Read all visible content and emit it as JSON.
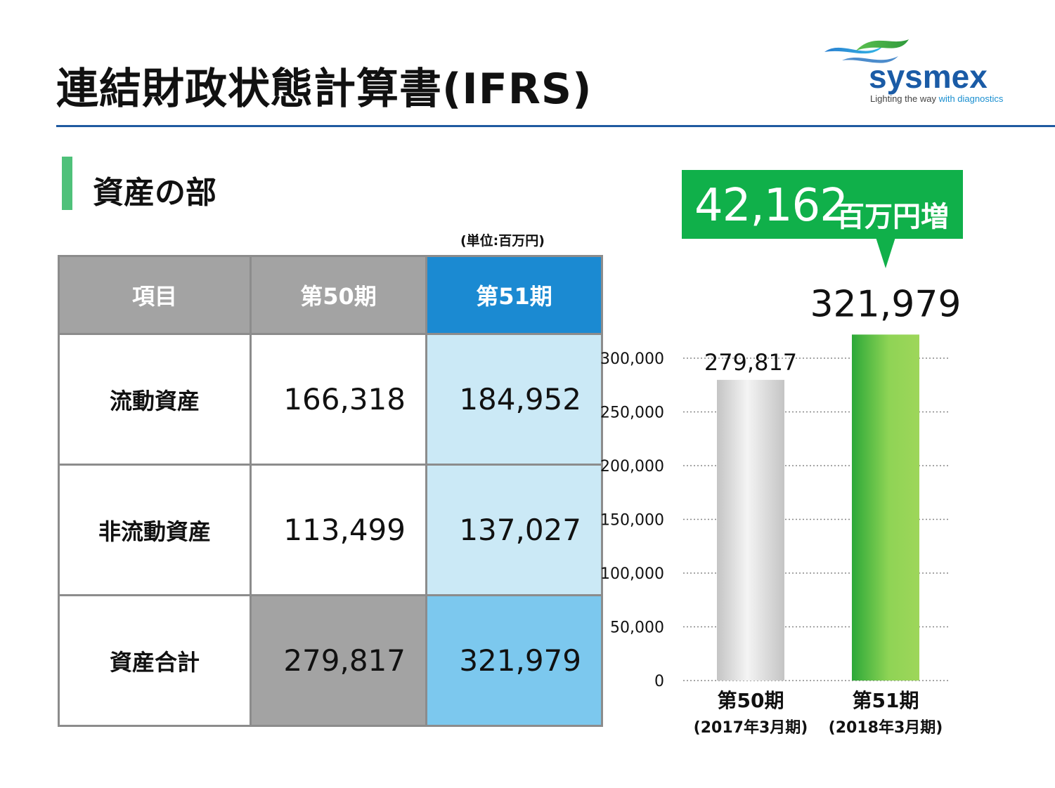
{
  "header": {
    "title": "連結財政状態計算書(IFRS)",
    "logo_word": "sysmex",
    "logo_tagline_a": "Lighting the way",
    "logo_tagline_b": "with diagnostics"
  },
  "section": {
    "title": "資産の部",
    "unit": "(単位:百万円)"
  },
  "table": {
    "headers": [
      "項目",
      "第50期",
      "第51期"
    ],
    "rows": [
      {
        "label": "流動資産",
        "p50": "166,318",
        "p51": "184,952"
      },
      {
        "label": "非流動資産",
        "p50": "113,499",
        "p51": "137,027"
      },
      {
        "label": "資産合計",
        "p50": "279,817",
        "p51": "321,979"
      }
    ]
  },
  "callout": {
    "value": "42,162",
    "unit": "百万円増"
  },
  "colors": {
    "accent_green": "#10b04a",
    "header_blue": "#1b8ad2",
    "rule_blue": "#1f5aa0"
  },
  "chart_data": {
    "type": "bar",
    "categories": [
      "第50期",
      "第51期"
    ],
    "subcategories": [
      "(2017年3月期)",
      "(2018年3月期)"
    ],
    "values": [
      279817,
      321979
    ],
    "value_labels": [
      "279,817",
      "321,979"
    ],
    "ylim": [
      0,
      300000
    ],
    "yticks": [
      0,
      50000,
      100000,
      150000,
      200000,
      250000,
      300000
    ],
    "ytick_labels": [
      "0",
      "50,000",
      "100,000",
      "150,000",
      "200,000",
      "250,000",
      "300,000"
    ],
    "grid": true
  }
}
